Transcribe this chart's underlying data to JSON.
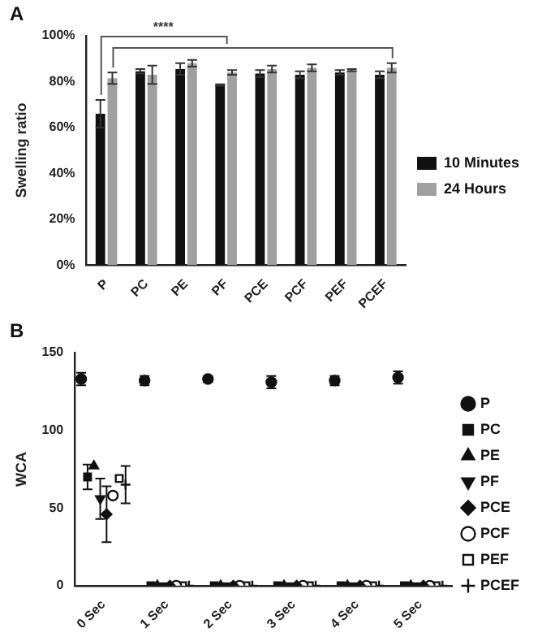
{
  "chart_data": [
    {
      "type": "bar",
      "title": "A",
      "ylabel": "Swelling ratio",
      "categories": [
        "P",
        "PC",
        "PE",
        "PF",
        "PCE",
        "PCF",
        "PEF",
        "PCEF"
      ],
      "series": [
        {
          "name": "10 Minutes",
          "color": "#111111",
          "values": [
            66,
            84.5,
            85.5,
            78.5,
            83.5,
            83,
            84,
            83
          ],
          "errors": [
            6,
            1,
            2.5,
            0.3,
            1.5,
            1.5,
            1,
            1.5
          ]
        },
        {
          "name": "24 Hours",
          "color": "#a0a0a0",
          "values": [
            81.5,
            83,
            88,
            84,
            85.5,
            86,
            85,
            86
          ],
          "errors": [
            2.5,
            4,
            1.5,
            1,
            1.5,
            1.5,
            0.5,
            2
          ]
        }
      ],
      "ylim": [
        0,
        100
      ],
      "yticks": [
        {
          "value": 0,
          "label": "0%"
        },
        {
          "value": 20,
          "label": "20%"
        },
        {
          "value": 40,
          "label": "40%"
        },
        {
          "value": 60,
          "label": "60%"
        },
        {
          "value": 80,
          "label": "80%"
        },
        {
          "value": 100,
          "label": "100%"
        }
      ],
      "annotations": [
        "****"
      ],
      "grid": false,
      "legend": "right"
    },
    {
      "type": "scatter",
      "title": "B",
      "ylabel": "WCA",
      "categories": [
        "0 Sec",
        "1 Sec",
        "2 Sec",
        "3 Sec",
        "4 Sec",
        "5 Sec"
      ],
      "series": [
        {
          "name": "P",
          "color": "#111111",
          "marker": "circle",
          "values": [
            133,
            132,
            133,
            131,
            132,
            134
          ],
          "errors": [
            4,
            3,
            2,
            4,
            3,
            4
          ]
        },
        {
          "name": "PC",
          "color": "#111111",
          "marker": "square",
          "values": [
            70,
            0,
            0,
            0,
            0,
            0
          ],
          "errors": [
            8,
            null,
            null,
            null,
            null,
            null
          ]
        },
        {
          "name": "PE",
          "color": "#111111",
          "marker": "triangle",
          "values": [
            77,
            0,
            0,
            0,
            0,
            0
          ]
        },
        {
          "name": "PF",
          "color": "#111111",
          "marker": "triangle-down",
          "values": [
            56,
            0,
            0,
            0,
            0,
            0
          ],
          "errors": [
            13,
            null,
            null,
            null,
            null,
            null
          ]
        },
        {
          "name": "PCE",
          "color": "#111111",
          "marker": "diamond",
          "values": [
            46,
            0,
            0,
            0,
            0,
            0
          ],
          "errors": [
            18,
            null,
            null,
            null,
            null,
            null
          ]
        },
        {
          "name": "PCF",
          "color": "#111111",
          "marker": "circle-open",
          "values": [
            58,
            0,
            0,
            0,
            0,
            0
          ]
        },
        {
          "name": "PEF",
          "color": "#111111",
          "marker": "square-open",
          "values": [
            69,
            0,
            0,
            0,
            0,
            0
          ]
        },
        {
          "name": "PCEF",
          "color": "#111111",
          "marker": "cross",
          "values": [
            65,
            0,
            0,
            0,
            0,
            0
          ],
          "errors": [
            12,
            null,
            null,
            null,
            null,
            null
          ]
        }
      ],
      "ylim": [
        0,
        150
      ],
      "yticks": [
        0,
        50,
        100,
        150
      ],
      "grid": false,
      "legend": "right"
    }
  ]
}
